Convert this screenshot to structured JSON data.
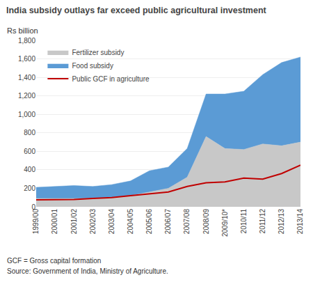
{
  "chart_data": {
    "type": "area",
    "title": "India subsidy outlays far exceed public agricultural investment",
    "ylabel": "Rs billion",
    "annotations": [
      "GCF = Gross capital formation",
      "Source: Government of India, Ministry of Agriculture."
    ],
    "categories": [
      "1999/00",
      "2000/01",
      "2001/02",
      "2002/03",
      "2003/04",
      "2004/05",
      "2005/06",
      "2006/07",
      "2007/08",
      "2008/09",
      "2009/10*",
      "2010/11",
      "2011/12",
      "2012/13",
      "2013/14"
    ],
    "series": [
      {
        "name": "Fertilizer subsidy",
        "type": "area",
        "color": "#c8c8c8",
        "values": [
          90,
          90,
          90,
          90,
          100,
          120,
          160,
          200,
          320,
          760,
          630,
          620,
          680,
          660,
          700
        ]
      },
      {
        "name": "Food subsidy",
        "type": "area",
        "color": "#5b9bd5",
        "values": [
          120,
          130,
          140,
          130,
          140,
          160,
          230,
          230,
          310,
          460,
          590,
          630,
          750,
          900,
          920
        ]
      },
      {
        "name": "Public GCF in agriculture",
        "type": "line",
        "color": "#c00000",
        "values": [
          75,
          75,
          80,
          90,
          100,
          120,
          140,
          160,
          220,
          260,
          270,
          310,
          300,
          360,
          450
        ]
      }
    ],
    "stacked": true,
    "ylim": [
      0,
      1800
    ],
    "yticks": [
      0,
      200,
      400,
      600,
      800,
      {
        "value": 1000,
        "label": "1,000"
      },
      {
        "value": 1200,
        "label": "1,200"
      },
      {
        "value": 1400,
        "label": "1,400"
      },
      {
        "value": 1600,
        "label": "1,600"
      },
      {
        "value": 1800,
        "label": "1,800"
      }
    ],
    "grid": true,
    "legend": "upper left"
  }
}
